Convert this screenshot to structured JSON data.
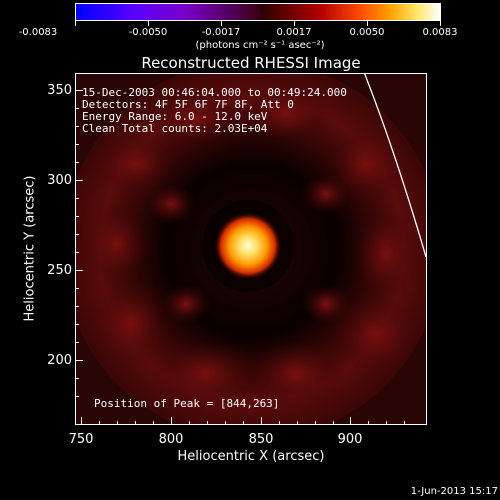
{
  "colorbar": {
    "tick_labels": [
      "-0.0083",
      "-0.0050",
      "-0.0017",
      "0.0017",
      "0.0050",
      "0.0083"
    ],
    "units": "(photons cm⁻² s⁻¹ asec⁻²)"
  },
  "plot": {
    "title": "Reconstructed RHESSI Image",
    "info_lines": [
      "15-Dec-2003 00:46:04.000 to 00:49:24.000",
      "Detectors: 4F 5F 6F 7F 8F, Att 0",
      "Energy Range: 6.0 - 12.0 keV",
      "Clean    Total counts: 2.03E+04"
    ],
    "peak_label": "Position of Peak = [844,263]",
    "x_label": "Heliocentric X (arcsec)",
    "y_label": "Heliocentric Y (arcsec)",
    "x_ticks": [
      "750",
      "800",
      "850",
      "900"
    ],
    "y_ticks": [
      "350",
      "300",
      "250",
      "200"
    ],
    "x_range": [
      750,
      940
    ],
    "y_range": [
      168,
      358
    ],
    "peak_position": [
      844,
      263
    ],
    "colors": {
      "dark_red": "#6a0c0c",
      "source_core": "#fff7c0",
      "source_mid": "#ffb000",
      "source_outer": "#e12a00",
      "background": "#000000"
    }
  },
  "footer": {
    "date": "1-Jun-2013 15:17"
  }
}
